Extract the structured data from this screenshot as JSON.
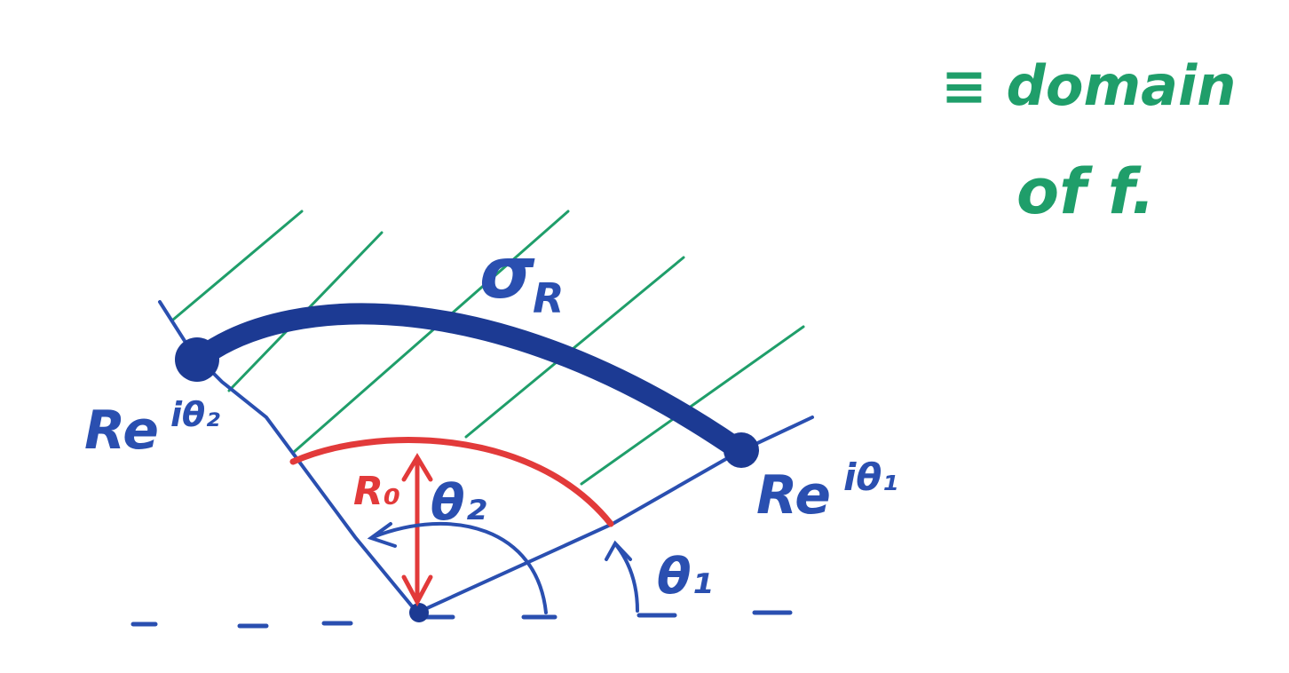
{
  "colors": {
    "ink_blue": "#2a4fb0",
    "ink_dark_blue": "#1c3a93",
    "ink_red": "#e23a3a",
    "ink_green": "#1f9e6a"
  },
  "labels": {
    "sigma_r": "σ",
    "sigma_r_sub": "R",
    "r_e_theta2": "Re",
    "r_e_theta2_exp": "iθ₂",
    "r_e_theta1": "Re",
    "r_e_theta1_exp": "iθ₁",
    "r0": "R₀",
    "theta2": "θ₂",
    "theta1": "θ₁"
  },
  "note": {
    "line1": "≡ domain",
    "line2": "of f."
  }
}
